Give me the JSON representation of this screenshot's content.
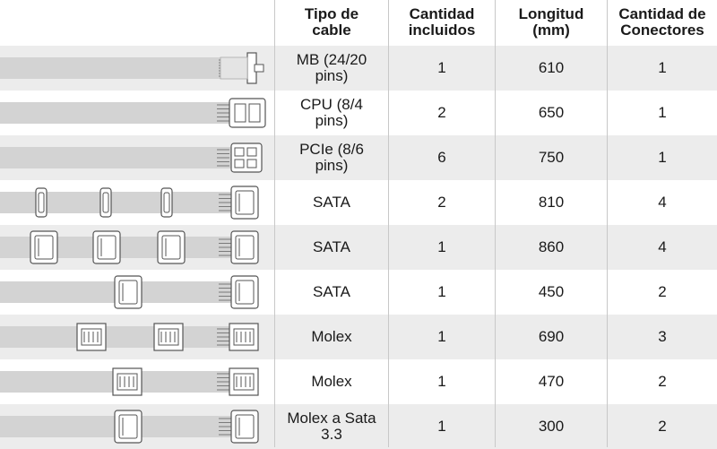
{
  "headers": {
    "tipo": "Tipo de\ncable",
    "cantidad": "Cantidad\nincluidos",
    "longitud": "Longitud\n(mm)",
    "conectores": "Cantidad de\nConectores"
  },
  "rows": [
    {
      "tipo": "MB (24/20\npins)",
      "cantidad": "1",
      "longitud": "610",
      "conectores": "1"
    },
    {
      "tipo": "CPU (8/4\npins)",
      "cantidad": "2",
      "longitud": "650",
      "conectores": "1"
    },
    {
      "tipo": "PCIe (8/6\npins)",
      "cantidad": "6",
      "longitud": "750",
      "conectores": "1"
    },
    {
      "tipo": "SATA",
      "cantidad": "2",
      "longitud": "810",
      "conectores": "4"
    },
    {
      "tipo": "SATA",
      "cantidad": "1",
      "longitud": "860",
      "conectores": "4"
    },
    {
      "tipo": "SATA",
      "cantidad": "1",
      "longitud": "450",
      "conectores": "2"
    },
    {
      "tipo": "Molex",
      "cantidad": "1",
      "longitud": "690",
      "conectores": "3"
    },
    {
      "tipo": "Molex",
      "cantidad": "1",
      "longitud": "470",
      "conectores": "2"
    },
    {
      "tipo": "Molex a Sata\n3.3",
      "cantidad": "1",
      "longitud": "300",
      "conectores": "2"
    }
  ],
  "cable_icons": [
    "mb-24pin-cable-icon",
    "cpu-8pin-cable-icon",
    "pcie-8pin-cable-icon",
    "sata-4-connector-cable-icon",
    "sata-4-connector-cable-icon",
    "sata-2-connector-cable-icon",
    "molex-3-connector-cable-icon",
    "molex-2-connector-cable-icon",
    "molex-to-sata-cable-icon"
  ],
  "colors": {
    "stripe": "#ececec",
    "cable": "#d3d3d3",
    "connector_stroke": "#555555"
  }
}
